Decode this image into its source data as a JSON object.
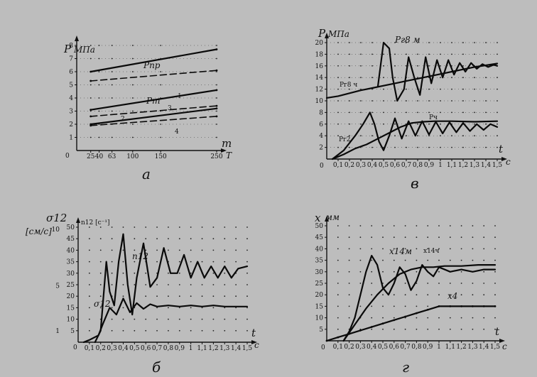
{
  "chart_data": [
    {
      "id": "a",
      "type": "line",
      "caption": "а",
      "ylabel": "P",
      "yunit": "МПа",
      "xlabel": "m",
      "xunit": "T",
      "xlim": [
        0,
        250
      ],
      "ylim": [
        0,
        8
      ],
      "xticks": [
        25,
        40,
        63,
        100,
        150,
        250
      ],
      "xtick_labels": [
        "25",
        "40",
        "63",
        "100",
        "150",
        "250"
      ],
      "yticks": [
        1,
        2,
        3,
        4,
        5,
        6,
        7,
        8
      ],
      "ytick_labels": [
        "1",
        "2",
        "3",
        "4",
        "5",
        "6",
        "7",
        "8"
      ],
      "origin_label": "0",
      "series": [
        {
          "name": "Pпр",
          "style": "solid",
          "x": [
            25,
            250
          ],
          "y": [
            6.0,
            7.7
          ]
        },
        {
          "style": "dashed",
          "x": [
            25,
            250
          ],
          "y": [
            5.3,
            6.1
          ]
        },
        {
          "name": "Pт",
          "style": "solid",
          "x": [
            25,
            250
          ],
          "y": [
            3.1,
            4.6
          ]
        },
        {
          "style": "dashed",
          "x": [
            25,
            250
          ],
          "y": [
            2.6,
            3.4
          ]
        },
        {
          "style": "solid",
          "x": [
            25,
            250
          ],
          "y": [
            2.0,
            3.2
          ]
        },
        {
          "style": "dashed",
          "x": [
            25,
            250
          ],
          "y": [
            1.9,
            2.6
          ]
        }
      ],
      "annotations": [
        "Pпр",
        "Pт",
        "1",
        "2",
        "3",
        "4"
      ]
    },
    {
      "id": "b",
      "type": "line",
      "caption": "в",
      "ylabel": "P",
      "yunit": "МПа",
      "xlabel": "t",
      "xunit": "c",
      "xlim": [
        0,
        1.5
      ],
      "ylim": [
        0,
        20
      ],
      "xticks": [
        0.1,
        0.2,
        0.3,
        0.4,
        0.5,
        0.6,
        0.7,
        0.8,
        0.9,
        1.0,
        1.1,
        1.2,
        1.3,
        1.4,
        1.5
      ],
      "xtick_labels": [
        "0,1",
        "0,2",
        "0,3",
        "0,4",
        "0,5",
        "0,6",
        "0,7",
        "0,8",
        "0,9",
        "1",
        "1,1",
        "1,2",
        "1,3",
        "1,4",
        "1,5"
      ],
      "yticks": [
        2,
        4,
        6,
        8,
        10,
        12,
        14,
        16,
        18,
        20
      ],
      "ytick_labels": [
        "2",
        "4",
        "6",
        "8",
        "10",
        "12",
        "14",
        "16",
        "18",
        "20"
      ],
      "origin_label": "0",
      "series": [
        {
          "name": "Pг8 м",
          "x": [
            0.45,
            0.5,
            0.55,
            0.58,
            0.62,
            0.68,
            0.72,
            0.77,
            0.82,
            0.87,
            0.92,
            0.97,
            1.02,
            1.07,
            1.12,
            1.17,
            1.22,
            1.27,
            1.32,
            1.37,
            1.42,
            1.47,
            1.5
          ],
          "y": [
            12.5,
            20,
            19,
            14,
            10,
            12,
            17.5,
            14,
            11,
            17.5,
            13,
            17,
            14,
            17,
            14.5,
            16.5,
            15,
            16.5,
            15.5,
            16.3,
            15.8,
            16.2,
            16
          ]
        },
        {
          "name": "Pг8 ч",
          "x": [
            0,
            0.1,
            0.2,
            0.3,
            0.4,
            0.5,
            0.6,
            0.7,
            0.8,
            0.9,
            1.0,
            1.1,
            1.2,
            1.3,
            1.4,
            1.5
          ],
          "y": [
            10.5,
            10.8,
            11.3,
            11.8,
            12.2,
            12.6,
            13,
            13.4,
            13.8,
            14.2,
            14.6,
            15,
            15.4,
            15.8,
            16.1,
            16.4
          ]
        },
        {
          "name": "Pг2",
          "x": [
            0.05,
            0.15,
            0.25,
            0.32,
            0.38,
            0.42,
            0.46,
            0.5,
            0.55,
            0.6,
            0.66,
            0.72,
            0.78,
            0.84,
            0.9,
            0.96,
            1.02,
            1.08,
            1.14,
            1.2,
            1.26,
            1.32,
            1.38,
            1.44,
            1.5
          ],
          "y": [
            0,
            1.5,
            4,
            6,
            8,
            6,
            3,
            1.5,
            4,
            7,
            3.5,
            6.5,
            4,
            6.5,
            4.2,
            6.4,
            4.4,
            6.3,
            4.6,
            6.2,
            4.8,
            6,
            5,
            6,
            5.5
          ]
        },
        {
          "name": "Pч",
          "x": [
            0.05,
            0.15,
            0.25,
            0.35,
            0.45,
            0.55,
            0.65,
            0.75,
            0.85,
            0.95,
            1.1,
            1.3,
            1.5
          ],
          "y": [
            0,
            0.8,
            1.8,
            2.5,
            3.5,
            4.5,
            5.5,
            6.2,
            6.4,
            6.5,
            6.5,
            6.4,
            6.5
          ]
        }
      ],
      "annotations": [
        "Pг8 м",
        "Pг8 ч",
        "Pг2",
        "Pч"
      ]
    },
    {
      "id": "c",
      "type": "line",
      "caption": "б",
      "ylabel_left": "σ12",
      "yunit_left": "[см/с]",
      "ylabel_right": "n12 [c⁻¹]",
      "xlabel": "t",
      "xunit": "c",
      "xlim": [
        0,
        1.5
      ],
      "ylim": [
        0,
        50
      ],
      "xticks": [
        0.1,
        0.2,
        0.3,
        0.4,
        0.5,
        0.6,
        0.7,
        0.8,
        0.9,
        1.0,
        1.1,
        1.2,
        1.3,
        1.4,
        1.5
      ],
      "xtick_labels": [
        "0,1",
        "0,2",
        "0,3",
        "0,4",
        "0,5",
        "0,6",
        "0,7",
        "0,8",
        "0,9",
        "1",
        "1,1",
        "1,2",
        "1,3",
        "1,4",
        "1,5"
      ],
      "yticks": [
        5,
        10,
        15,
        20,
        25,
        30,
        35,
        40,
        45,
        50
      ],
      "ytick_labels": [
        "5",
        "10",
        "15",
        "20",
        "25",
        "30",
        "35",
        "40",
        "45",
        "50"
      ],
      "left_ticks": [
        {
          "v": 10,
          "label": "10"
        },
        {
          "v": 5,
          "label": "5"
        },
        {
          "v": 1,
          "label": "1"
        }
      ],
      "left_tick_range": [
        0,
        10
      ],
      "origin_label": "0",
      "series": [
        {
          "name": "n12",
          "x": [
            0.15,
            0.2,
            0.25,
            0.28,
            0.32,
            0.36,
            0.4,
            0.44,
            0.48,
            0.52,
            0.58,
            0.64,
            0.7,
            0.76,
            0.82,
            0.88,
            0.94,
            1.0,
            1.06,
            1.12,
            1.18,
            1.24,
            1.3,
            1.36,
            1.42,
            1.5
          ],
          "y": [
            0,
            5,
            35,
            22,
            16,
            35,
            47,
            25,
            12,
            28,
            43,
            24,
            28,
            41,
            30,
            30,
            38,
            28,
            35,
            28,
            33,
            28,
            33,
            28,
            32,
            33
          ]
        },
        {
          "name": "σ12",
          "x": [
            0.05,
            0.1,
            0.18,
            0.22,
            0.28,
            0.34,
            0.4,
            0.46,
            0.52,
            0.58,
            0.64,
            0.7,
            0.8,
            0.9,
            1.0,
            1.1,
            1.2,
            1.3,
            1.4,
            1.5
          ],
          "y": [
            0,
            1,
            3,
            8,
            15,
            12,
            19,
            13,
            17,
            14.5,
            16.5,
            15.5,
            16,
            15.5,
            16,
            15.5,
            16,
            15.5,
            15.5,
            15.5
          ]
        }
      ],
      "annotations": [
        "n12",
        "σ12"
      ]
    },
    {
      "id": "d",
      "type": "line",
      "caption": "г",
      "ylabel": "x",
      "yunit": "мм",
      "xlabel": "t",
      "xunit": "c",
      "xlim": [
        0,
        1.5
      ],
      "ylim": [
        0,
        50
      ],
      "xticks": [
        0.1,
        0.2,
        0.3,
        0.4,
        0.5,
        0.6,
        0.7,
        0.8,
        0.9,
        1.0,
        1.1,
        1.2,
        1.3,
        1.4,
        1.5
      ],
      "xtick_labels": [
        "0,1",
        "0,2",
        "0,3",
        "0,4",
        "0,5",
        "0,6",
        "0,7",
        "0,8",
        "0,9",
        "1",
        "1,1",
        "1,2",
        "1,3",
        "1,4",
        "1,5"
      ],
      "yticks": [
        5,
        10,
        15,
        20,
        25,
        30,
        35,
        40,
        45,
        50
      ],
      "ytick_labels": [
        "5",
        "10",
        "15",
        "20",
        "25",
        "30",
        "35",
        "40",
        "45",
        "50"
      ],
      "origin_label": "0",
      "series": [
        {
          "name": "x14м",
          "x": [
            0.15,
            0.2,
            0.25,
            0.3,
            0.35,
            0.4,
            0.45,
            0.5,
            0.55,
            0.6,
            0.65,
            0.7,
            0.75,
            0.8,
            0.85,
            0.9,
            0.95,
            1.0,
            1.1,
            1.2,
            1.3,
            1.4,
            1.5
          ],
          "y": [
            0,
            4,
            10,
            20,
            30,
            37,
            33,
            23,
            20,
            25,
            32,
            29,
            22,
            26,
            33,
            30,
            28,
            32,
            30,
            31,
            30,
            31,
            31
          ]
        },
        {
          "name": "x14ч",
          "x": [
            0.15,
            0.25,
            0.35,
            0.45,
            0.55,
            0.65,
            0.75,
            0.85,
            0.95,
            1.05,
            1.2,
            1.35,
            1.5
          ],
          "y": [
            0,
            7,
            14,
            20,
            25,
            29,
            31,
            32,
            32,
            32.5,
            32.5,
            33,
            33
          ]
        },
        {
          "name": "x4",
          "x": [
            0,
            0.1,
            0.2,
            0.3,
            0.4,
            0.5,
            0.6,
            0.7,
            0.8,
            0.9,
            1.0,
            1.1,
            1.2,
            1.3,
            1.4,
            1.5
          ],
          "y": [
            0,
            1.5,
            3,
            4.5,
            6,
            7.5,
            9,
            10.5,
            12,
            13.5,
            15,
            15,
            15,
            15,
            15,
            15
          ]
        }
      ],
      "annotations": [
        "x14м",
        "x14ч",
        "x4"
      ]
    }
  ]
}
